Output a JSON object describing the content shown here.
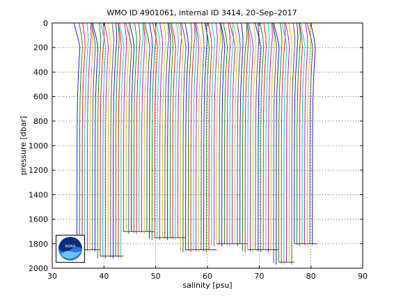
{
  "chart_data": {
    "type": "line",
    "title": "WMO ID 4901061, internal ID 3414, 20–Sep–2017",
    "xlabel": "salinity [psu]",
    "ylabel": "pressure [dbar]",
    "xlim": [
      30,
      90
    ],
    "ylim": [
      0,
      2000
    ],
    "y_reversed": true,
    "xticks": [
      30,
      40,
      50,
      60,
      70,
      80,
      90
    ],
    "yticks": [
      0,
      200,
      400,
      600,
      800,
      1000,
      1200,
      1400,
      1600,
      1800,
      2000
    ],
    "grid": "dotted",
    "offset_per_profile_psu": 0.5,
    "profile_count": 92,
    "first_profile_base_salinity": 34.8,
    "profile_colors": [
      "#0000ff",
      "#008000",
      "#ff0000",
      "#00bfbf",
      "#bf00bf",
      "#bfbf00",
      "#404040"
    ],
    "surface_salinity_anomaly": [
      -0.45,
      -0.2,
      0.0,
      0.35,
      0.6,
      0.3,
      -0.1,
      -0.35,
      0.15,
      0.5
    ],
    "max_pressure_by_group": [
      {
        "profiles": "1-8",
        "max_pressure": 1850
      },
      {
        "profiles": "9-18",
        "max_pressure": 1900
      },
      {
        "profiles": "19-28",
        "max_pressure": 1700
      },
      {
        "profiles": "29-40",
        "max_pressure": 1750
      },
      {
        "profiles": "41-52",
        "max_pressure": 1850
      },
      {
        "profiles": "53-64",
        "max_pressure": 1800
      },
      {
        "profiles": "65-76",
        "max_pressure": 1850
      },
      {
        "profiles": "77-84",
        "max_pressure": 1950
      },
      {
        "profiles": "85-92",
        "max_pressure": 1800
      }
    ]
  },
  "logo": {
    "text": "NOAA"
  }
}
